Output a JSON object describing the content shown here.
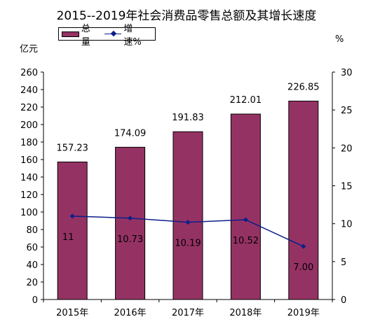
{
  "chart_data": {
    "type": "bar",
    "title": "2015--2019年社会消费品零售总额及其增长速度",
    "categories": [
      "2015年",
      "2016年",
      "2017年",
      "2018年",
      "2019年"
    ],
    "series": [
      {
        "name": "总量",
        "type": "bar",
        "axis": "left",
        "color": "#953264",
        "values": [
          157.23,
          174.09,
          191.83,
          212.01,
          226.85
        ],
        "labels": [
          "157.23",
          "174.09",
          "191.83",
          "212.01",
          "226.85"
        ]
      },
      {
        "name": "增速%",
        "type": "line",
        "axis": "right",
        "color": "#0b1f8a",
        "values": [
          11,
          10.73,
          10.19,
          10.52,
          7.0
        ],
        "labels": [
          "11",
          "10.73",
          "10.19",
          "10.52",
          "7.00"
        ]
      }
    ],
    "ylabel_left": "亿元",
    "ylabel_right": "%",
    "ylim_left": [
      0,
      260
    ],
    "yticks_left": [
      "0",
      "20",
      "40",
      "60",
      "80",
      "100",
      "120",
      "140",
      "160",
      "180",
      "200",
      "220",
      "240",
      "260"
    ],
    "ylim_right": [
      0,
      30
    ],
    "yticks_right": [
      "0",
      "5",
      "10",
      "15",
      "20",
      "25",
      "30"
    ],
    "grid": false,
    "legend_position": "top-left"
  }
}
